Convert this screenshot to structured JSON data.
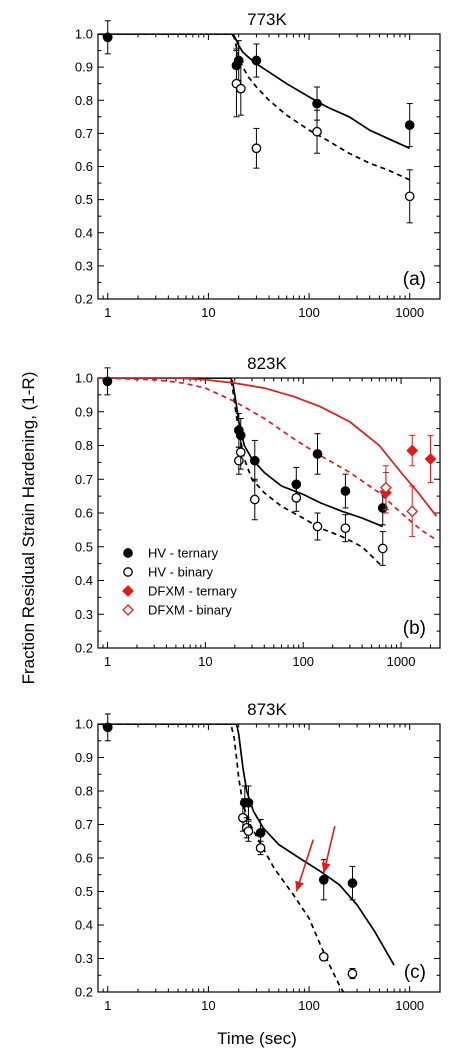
{
  "ylabel": "Fraction Residual Strain Hardening, (1-R)",
  "xlabel": "Time (sec)",
  "colors": {
    "black": "#000000",
    "red": "#e31a1c"
  },
  "legend": {
    "placement": "lower-left (panel b)",
    "entries": [
      {
        "label": "HV - ternary",
        "marker": "filled-circle",
        "color": "#000000"
      },
      {
        "label": "HV - binary",
        "marker": "open-circle",
        "color": "#000000"
      },
      {
        "label": "DFXM - ternary",
        "marker": "filled-diamond",
        "color": "#e31a1c"
      },
      {
        "label": "DFXM - binary",
        "marker": "open-diamond",
        "color": "#e31a1c"
      }
    ]
  },
  "chart_data": [
    {
      "type": "scatter",
      "title": "773K",
      "panel_label": "(a)",
      "xscale": "log",
      "xlim": [
        0.8,
        2000
      ],
      "ylim": [
        0.2,
        1.0
      ],
      "xticks": [
        1,
        10,
        100,
        1000
      ],
      "yticks": [
        0.2,
        0.3,
        0.4,
        0.5,
        0.6,
        0.7,
        0.8,
        0.9,
        1.0
      ],
      "points": [
        {
          "series": "HV - ternary",
          "x": 1,
          "y": 0.99,
          "err": 0.05
        },
        {
          "series": "HV - ternary",
          "x": 19,
          "y": 0.905,
          "err": 0.05
        },
        {
          "series": "HV - ternary",
          "x": 20,
          "y": 0.92,
          "err": 0.06
        },
        {
          "series": "HV - ternary",
          "x": 30,
          "y": 0.92,
          "err": 0.05
        },
        {
          "series": "HV - ternary",
          "x": 120,
          "y": 0.79,
          "err": 0.05
        },
        {
          "series": "HV - ternary",
          "x": 1000,
          "y": 0.725,
          "err": 0.065
        },
        {
          "series": "HV - binary",
          "x": 19,
          "y": 0.85,
          "err": 0.1
        },
        {
          "series": "HV - binary",
          "x": 21,
          "y": 0.835,
          "err": 0.08
        },
        {
          "series": "HV - binary",
          "x": 30,
          "y": 0.655,
          "err": 0.06
        },
        {
          "series": "HV - binary",
          "x": 120,
          "y": 0.705,
          "err": 0.065
        },
        {
          "series": "HV - binary",
          "x": 1000,
          "y": 0.51,
          "err": 0.08
        }
      ],
      "curves": [
        {
          "series": "HV - ternary fit",
          "style": "solid",
          "color": "#000000",
          "x": [
            0.8,
            17,
            18,
            19,
            20,
            22,
            25,
            30,
            40,
            60,
            100,
            150,
            250,
            400,
            600,
            1000
          ],
          "y": [
            1.0,
            1.0,
            0.995,
            0.98,
            0.965,
            0.945,
            0.93,
            0.91,
            0.885,
            0.85,
            0.81,
            0.78,
            0.75,
            0.71,
            0.685,
            0.655
          ]
        },
        {
          "series": "HV - binary fit",
          "style": "dashed",
          "color": "#000000",
          "x": [
            0.8,
            17,
            18,
            19,
            20,
            22,
            25,
            30,
            40,
            60,
            100,
            150,
            250,
            400,
            600,
            1000
          ],
          "y": [
            1.0,
            1.0,
            0.99,
            0.96,
            0.93,
            0.9,
            0.87,
            0.84,
            0.8,
            0.755,
            0.71,
            0.68,
            0.64,
            0.61,
            0.59,
            0.56
          ]
        }
      ]
    },
    {
      "type": "scatter",
      "title": "823K",
      "panel_label": "(b)",
      "xscale": "log",
      "xlim": [
        0.8,
        2500
      ],
      "ylim": [
        0.2,
        1.0
      ],
      "xticks": [
        1,
        10,
        100,
        1000
      ],
      "yticks": [
        0.2,
        0.3,
        0.4,
        0.5,
        0.6,
        0.7,
        0.8,
        0.9,
        1.0
      ],
      "points": [
        {
          "series": "HV - ternary",
          "x": 1,
          "y": 0.99,
          "err": 0.04
        },
        {
          "series": "HV - ternary",
          "x": 22,
          "y": 0.845,
          "err": 0.05
        },
        {
          "series": "HV - ternary",
          "x": 23,
          "y": 0.83,
          "err": 0.05
        },
        {
          "series": "HV - ternary",
          "x": 32,
          "y": 0.755,
          "err": 0.06
        },
        {
          "series": "HV - ternary",
          "x": 85,
          "y": 0.685,
          "err": 0.05
        },
        {
          "series": "HV - ternary",
          "x": 140,
          "y": 0.775,
          "err": 0.06
        },
        {
          "series": "HV - ternary",
          "x": 270,
          "y": 0.665,
          "err": 0.05
        },
        {
          "series": "HV - ternary",
          "x": 650,
          "y": 0.615,
          "err": 0.05
        },
        {
          "series": "HV - binary",
          "x": 22,
          "y": 0.755,
          "err": 0.04
        },
        {
          "series": "HV - binary",
          "x": 23,
          "y": 0.78,
          "err": 0.05
        },
        {
          "series": "HV - binary",
          "x": 32,
          "y": 0.64,
          "err": 0.06
        },
        {
          "series": "HV - binary",
          "x": 85,
          "y": 0.645,
          "err": 0.04
        },
        {
          "series": "HV - binary",
          "x": 140,
          "y": 0.56,
          "err": 0.04
        },
        {
          "series": "HV - binary",
          "x": 270,
          "y": 0.555,
          "err": 0.04
        },
        {
          "series": "HV - binary",
          "x": 650,
          "y": 0.495,
          "err": 0.05
        },
        {
          "series": "DFXM - ternary",
          "x": 1300,
          "y": 0.785,
          "err": 0.045
        },
        {
          "series": "DFXM - ternary",
          "x": 2000,
          "y": 0.76,
          "err": 0.07
        },
        {
          "series": "DFXM - ternary",
          "x": 700,
          "y": 0.66,
          "err": 0.06
        },
        {
          "series": "DFXM - binary",
          "x": 700,
          "y": 0.675,
          "err": 0.065
        },
        {
          "series": "DFXM - binary",
          "x": 1300,
          "y": 0.605,
          "err": 0.075
        }
      ],
      "curves": [
        {
          "series": "HV - ternary fit",
          "style": "solid",
          "color": "#000000",
          "x": [
            0.8,
            18,
            19,
            20,
            22,
            25,
            30,
            40,
            60,
            100,
            150,
            250,
            400,
            650
          ],
          "y": [
            1.0,
            1.0,
            0.99,
            0.95,
            0.87,
            0.8,
            0.76,
            0.72,
            0.68,
            0.655,
            0.63,
            0.605,
            0.585,
            0.56
          ]
        },
        {
          "series": "HV - binary fit",
          "style": "dashed",
          "color": "#000000",
          "x": [
            0.8,
            18,
            19,
            20,
            22,
            25,
            30,
            40,
            60,
            100,
            150,
            250,
            400,
            650
          ],
          "y": [
            1.0,
            1.0,
            0.97,
            0.92,
            0.84,
            0.76,
            0.7,
            0.66,
            0.62,
            0.585,
            0.555,
            0.53,
            0.5,
            0.44
          ]
        },
        {
          "series": "DFXM - ternary fit",
          "style": "solid",
          "color": "#e31a1c",
          "x": [
            0.8,
            5,
            10,
            20,
            40,
            80,
            150,
            300,
            600,
            1000,
            1500,
            2300
          ],
          "y": [
            1.0,
            1.0,
            0.995,
            0.985,
            0.97,
            0.945,
            0.915,
            0.87,
            0.8,
            0.72,
            0.66,
            0.59
          ]
        },
        {
          "series": "DFXM - binary fit",
          "style": "dashed",
          "color": "#e31a1c",
          "x": [
            0.8,
            3,
            6,
            10,
            20,
            40,
            80,
            150,
            300,
            600,
            1000,
            1600,
            2300
          ],
          "y": [
            1.0,
            0.995,
            0.985,
            0.97,
            0.93,
            0.88,
            0.82,
            0.77,
            0.72,
            0.66,
            0.6,
            0.55,
            0.52
          ]
        }
      ]
    },
    {
      "type": "scatter",
      "title": "873K",
      "panel_label": "(c)",
      "xscale": "log",
      "xlim": [
        0.8,
        2000
      ],
      "ylim": [
        0.2,
        1.0
      ],
      "xticks": [
        1,
        10,
        100,
        1000
      ],
      "yticks": [
        0.2,
        0.3,
        0.4,
        0.5,
        0.6,
        0.7,
        0.8,
        0.9,
        1.0
      ],
      "points": [
        {
          "series": "HV - ternary",
          "x": 1,
          "y": 0.99,
          "err": 0.04
        },
        {
          "series": "HV - ternary",
          "x": 23,
          "y": 0.765,
          "err": 0.05
        },
        {
          "series": "HV - ternary",
          "x": 25,
          "y": 0.765,
          "err": 0.05
        },
        {
          "series": "HV - ternary",
          "x": 33,
          "y": 0.675,
          "err": 0.04
        },
        {
          "series": "HV - ternary",
          "x": 140,
          "y": 0.535,
          "err": 0.06
        },
        {
          "series": "HV - ternary",
          "x": 270,
          "y": 0.525,
          "err": 0.05
        },
        {
          "series": "HV - binary",
          "x": 22,
          "y": 0.72,
          "err": 0.04
        },
        {
          "series": "HV - binary",
          "x": 24,
          "y": 0.69,
          "err": 0.03
        },
        {
          "series": "HV - binary",
          "x": 25,
          "y": 0.68,
          "err": 0.03
        },
        {
          "series": "HV - binary",
          "x": 33,
          "y": 0.63,
          "err": 0.02
        },
        {
          "series": "HV - binary",
          "x": 140,
          "y": 0.305,
          "err": 0.01
        },
        {
          "series": "HV - binary",
          "x": 270,
          "y": 0.255,
          "err": 0.015
        }
      ],
      "curves": [
        {
          "series": "HV - ternary fit",
          "style": "solid",
          "color": "#000000",
          "x": [
            0.8,
            19,
            20,
            21,
            22,
            24,
            28,
            35,
            50,
            80,
            130,
            200,
            300,
            450,
            700
          ],
          "y": [
            1.0,
            1.0,
            0.97,
            0.92,
            0.87,
            0.8,
            0.74,
            0.69,
            0.64,
            0.6,
            0.56,
            0.52,
            0.46,
            0.38,
            0.28
          ]
        },
        {
          "series": "HV - binary fit",
          "style": "dashed",
          "color": "#000000",
          "x": [
            0.8,
            16,
            17,
            18,
            19,
            20,
            22,
            26,
            32,
            45,
            70,
            100,
            130,
            160,
            200,
            240
          ],
          "y": [
            1.0,
            1.0,
            0.99,
            0.96,
            0.9,
            0.84,
            0.76,
            0.7,
            0.65,
            0.57,
            0.49,
            0.42,
            0.34,
            0.28,
            0.22,
            0.18
          ]
        }
      ],
      "arrows": [
        {
          "from": [
            180,
            0.695
          ],
          "to": [
            140,
            0.555
          ],
          "color": "#e31a1c"
        },
        {
          "from": [
            110,
            0.655
          ],
          "to": [
            75,
            0.5
          ],
          "color": "#e31a1c"
        }
      ]
    }
  ]
}
